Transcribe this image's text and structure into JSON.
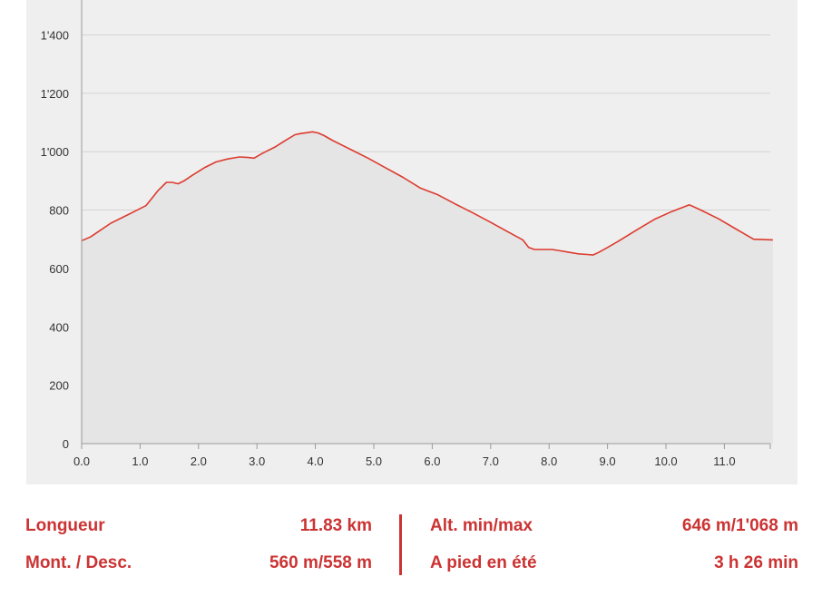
{
  "chart_data": {
    "type": "area",
    "title": "",
    "xlabel": "",
    "ylabel": "",
    "xlim": [
      0,
      11.83
    ],
    "ylim": [
      0,
      1550
    ],
    "grid": true,
    "x_ticks": [
      "0.0",
      "1.0",
      "2.0",
      "3.0",
      "4.0",
      "5.0",
      "6.0",
      "7.0",
      "8.0",
      "9.0",
      "10.0",
      "11.0"
    ],
    "y_ticks": [
      "0",
      "200",
      "400",
      "600",
      "800",
      "1'000",
      "1'200",
      "1'400"
    ],
    "line_color": "#dd3b2f",
    "fill_color": "#e5e5e5",
    "series": [
      {
        "x": [
          0,
          0.15,
          0.3,
          0.5,
          0.7,
          0.9,
          1.1,
          1.2,
          1.3,
          1.45,
          1.55,
          1.65,
          1.75,
          1.9,
          2.1,
          2.3,
          2.5,
          2.7,
          2.85,
          2.95,
          3.1,
          3.3,
          3.5,
          3.65,
          3.75,
          3.85,
          3.95,
          4.05,
          4.15,
          4.3,
          4.6,
          4.9,
          5.2,
          5.5,
          5.8,
          6.1,
          6.4,
          6.7,
          7.0,
          7.3,
          7.55,
          7.65,
          7.75,
          7.9,
          8.05,
          8.15,
          8.35,
          8.5,
          8.65,
          8.75,
          8.85,
          9.0,
          9.2,
          9.5,
          9.8,
          10.1,
          10.4,
          10.6,
          10.9,
          11.2,
          11.5,
          11.83
        ],
        "y": [
          695,
          708,
          728,
          755,
          775,
          795,
          815,
          840,
          865,
          895,
          895,
          890,
          900,
          920,
          945,
          965,
          975,
          982,
          980,
          978,
          995,
          1015,
          1040,
          1058,
          1062,
          1065,
          1068,
          1064,
          1055,
          1038,
          1008,
          978,
          945,
          912,
          875,
          852,
          820,
          790,
          758,
          725,
          698,
          672,
          665,
          665,
          665,
          662,
          655,
          650,
          648,
          646,
          655,
          672,
          695,
          732,
          768,
          795,
          818,
          800,
          770,
          735,
          700,
          698
        ]
      }
    ]
  },
  "stats": {
    "length_label": "Longueur",
    "length_value": "11.83 km",
    "ascent_label": "Mont. / Desc.",
    "ascent_value": "560 m/558 m",
    "alt_label": "Alt. min/max",
    "alt_value": "646 m/1'068 m",
    "time_label": "A pied en été",
    "time_value": "3 h 26 min"
  }
}
